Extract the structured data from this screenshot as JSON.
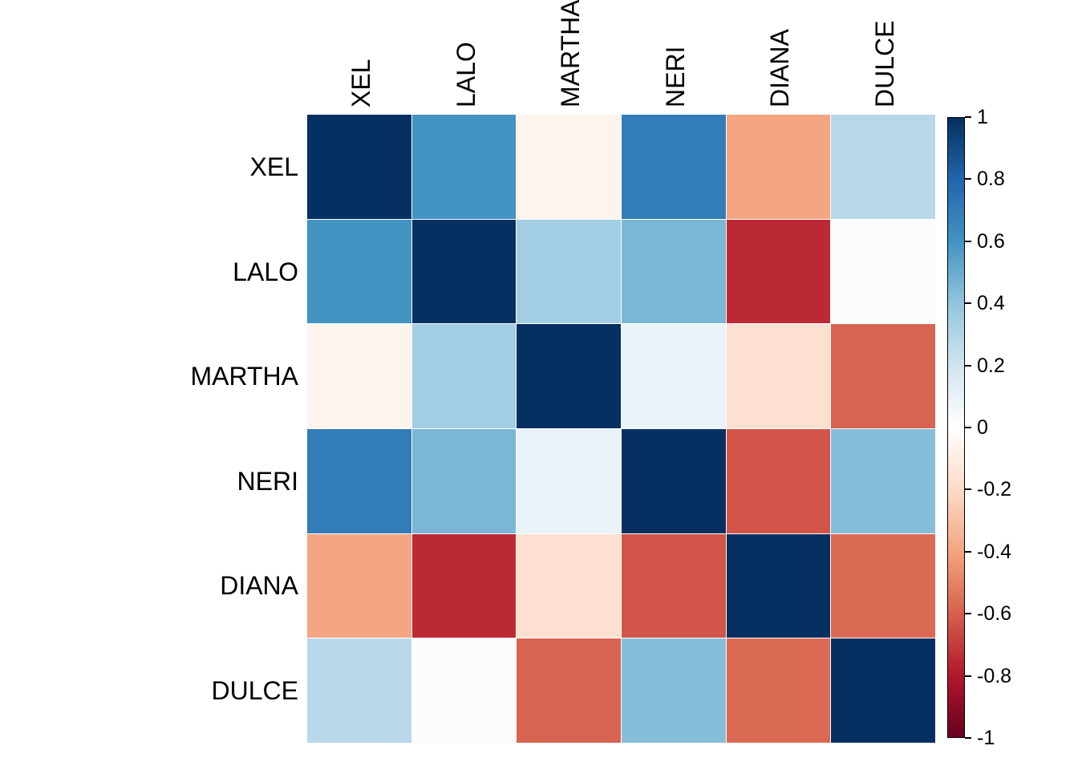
{
  "page": {
    "background": "#ffffff",
    "label_color": "#000000"
  },
  "chart_data": {
    "type": "heatmap",
    "subtype": "correlation-matrix",
    "title": "",
    "variables": [
      "XEL",
      "LALO",
      "MARTHA",
      "NERI",
      "DIANA",
      "DULCE"
    ],
    "matrix": [
      [
        1.0,
        0.6,
        -0.06,
        0.7,
        -0.4,
        0.28
      ],
      [
        0.6,
        1.0,
        0.35,
        0.46,
        -0.75,
        0.02
      ],
      [
        -0.06,
        0.35,
        1.0,
        0.09,
        -0.17,
        -0.59
      ],
      [
        0.7,
        0.46,
        0.09,
        1.0,
        -0.63,
        0.43
      ],
      [
        -0.4,
        -0.75,
        -0.17,
        -0.63,
        1.0,
        -0.57
      ],
      [
        0.28,
        0.02,
        -0.59,
        0.43,
        -0.57,
        1.0
      ]
    ],
    "value_range": [
      -1,
      1
    ],
    "grid_color": "#ffffff",
    "colorbar": {
      "position": "right",
      "tick_values": [
        1,
        0.8,
        0.6,
        0.4,
        0.2,
        0,
        -0.2,
        -0.4,
        -0.6,
        -0.8,
        -1
      ],
      "tick_labels": [
        "1",
        "0.8",
        "0.6",
        "0.4",
        "0.2",
        "0",
        "-0.2",
        "-0.4",
        "-0.6",
        "-0.8",
        "-1"
      ]
    },
    "palette": {
      "name": "RdBu",
      "stops": [
        {
          "value": -1.0,
          "color": "#67001F"
        },
        {
          "value": -0.8,
          "color": "#B2182B"
        },
        {
          "value": -0.6,
          "color": "#D6604D"
        },
        {
          "value": -0.4,
          "color": "#F4A582"
        },
        {
          "value": -0.2,
          "color": "#FDDBC7"
        },
        {
          "value": 0.0,
          "color": "#FFFFFF"
        },
        {
          "value": 0.2,
          "color": "#D1E5F0"
        },
        {
          "value": 0.4,
          "color": "#92C5DE"
        },
        {
          "value": 0.6,
          "color": "#4393C3"
        },
        {
          "value": 0.8,
          "color": "#2166AC"
        },
        {
          "value": 1.0,
          "color": "#053061"
        }
      ]
    }
  }
}
